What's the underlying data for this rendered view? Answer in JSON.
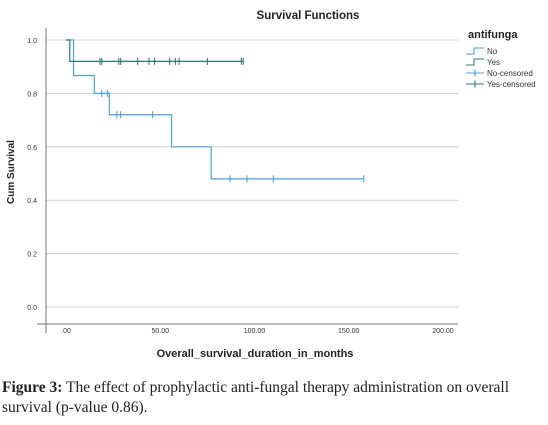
{
  "chart_data": {
    "type": "step",
    "title": "Survival Functions",
    "xlabel": "Overall_survival_duration_in_months",
    "ylabel": "Cum Survival",
    "xlim": [
      0,
      210
    ],
    "ylim": [
      0,
      1.0
    ],
    "xticks": [
      ".00",
      "50.00",
      "100.00",
      "150.00",
      "200.00"
    ],
    "xtick_values": [
      0,
      50,
      100,
      150,
      200
    ],
    "yticks": [
      "0.0",
      "0.2",
      "0.4",
      "0.6",
      "0.8",
      "1.0"
    ],
    "ytick_values": [
      0,
      0.2,
      0.4,
      0.6,
      0.8,
      1.0
    ],
    "grid": "horizontal",
    "legend": {
      "title": "antifunga",
      "position": "top-right",
      "entries": [
        "No",
        "Yes",
        "No-censored",
        "Yes-censored"
      ]
    },
    "series": [
      {
        "name": "No",
        "color": "#4aa3df",
        "steps": [
          [
            0,
            1.0
          ],
          [
            4,
            0.867
          ],
          [
            15,
            0.8
          ],
          [
            23,
            0.72
          ],
          [
            56,
            0.6
          ],
          [
            77,
            0.48
          ],
          [
            158,
            0.48
          ]
        ],
        "censored": [
          [
            19,
            0.8
          ],
          [
            22,
            0.8
          ],
          [
            27,
            0.72
          ],
          [
            29,
            0.72
          ],
          [
            46,
            0.72
          ],
          [
            87,
            0.48
          ],
          [
            96,
            0.48
          ],
          [
            110,
            0.48
          ],
          [
            158,
            0.48
          ]
        ]
      },
      {
        "name": "Yes",
        "color": "#2d7d6e",
        "steps": [
          [
            0,
            1.0
          ],
          [
            2,
            0.92
          ],
          [
            94,
            0.92
          ]
        ],
        "censored": [
          [
            18,
            0.92
          ],
          [
            19,
            0.92
          ],
          [
            28,
            0.92
          ],
          [
            29,
            0.92
          ],
          [
            38,
            0.92
          ],
          [
            44,
            0.92
          ],
          [
            47,
            0.92
          ],
          [
            55,
            0.92
          ],
          [
            58,
            0.92
          ],
          [
            60,
            0.92
          ],
          [
            75,
            0.92
          ],
          [
            93,
            0.92
          ],
          [
            94,
            0.92
          ]
        ]
      }
    ]
  },
  "caption": {
    "label": "Figure 3:",
    "text": " The effect of prophylactic anti-fungal therapy administration on overall survival (p-value 0.86)."
  }
}
